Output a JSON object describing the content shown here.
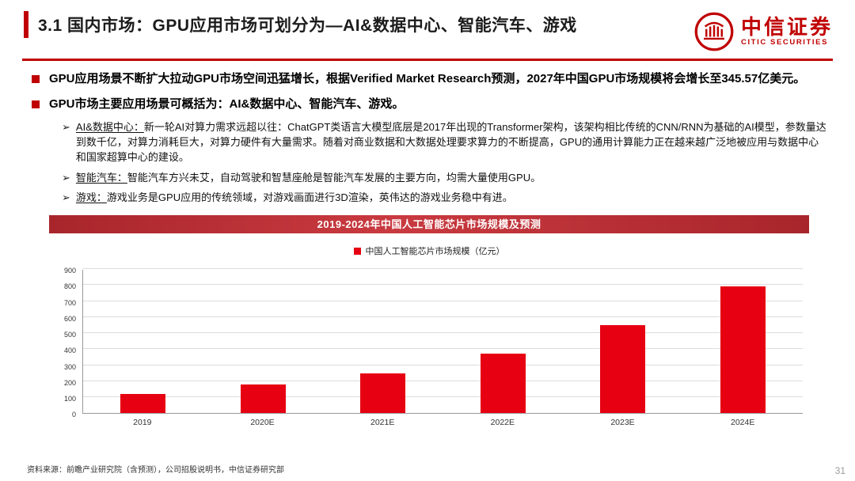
{
  "header": {
    "title": "3.1 国内市场：GPU应用市场可划分为—AI&数据中心、智能汽车、游戏",
    "logo": {
      "cn": "中信证券",
      "en": "CITIC SECURITIES"
    }
  },
  "bullets": {
    "b1": {
      "text": "GPU应用场景不断扩大拉动GPU市场空间迅猛增长，根据Verified Market Research预测，2027年中国GPU市场规模将会增长至345.57亿美元。"
    },
    "b2": {
      "text": "GPU市场主要应用场景可概括为：AI&数据中心、智能汽车、游戏。"
    },
    "sub1": {
      "lead": "AI&数据中心：",
      "text": "新一轮AI对算力需求远超以往：ChatGPT类语言大模型底层是2017年出现的Transformer架构，该架构相比传统的CNN/RNN为基础的AI模型，参数量达到数千亿，对算力消耗巨大，对算力硬件有大量需求。随着对商业数据和大数据处理要求算力的不断提高，GPU的通用计算能力正在越来越广泛地被应用与数据中心和国家超算中心的建设。"
    },
    "sub2": {
      "lead": "智能汽车：",
      "text": "智能汽车方兴未艾，自动驾驶和智慧座舱是智能汽车发展的主要方向，均需大量使用GPU。"
    },
    "sub3": {
      "lead": "游戏：",
      "text": "游戏业务是GPU应用的传统领域，对游戏画面进行3D渲染，英伟达的游戏业务稳中有进。"
    }
  },
  "chart_data": {
    "type": "bar",
    "title": "2019-2024年中国人工智能芯片市场规模及预测",
    "legend": [
      "中国人工智能芯片市场规模（亿元）"
    ],
    "categories": [
      "2019",
      "2020E",
      "2021E",
      "2022E",
      "2023E",
      "2024E"
    ],
    "values": [
      120,
      180,
      250,
      370,
      550,
      790
    ],
    "ylim": [
      0,
      900
    ],
    "ytick_step": 100,
    "bar_color": "#e60012",
    "grid": true,
    "legend_position": "top",
    "xlabel": "",
    "ylabel": ""
  },
  "footer": {
    "source": "资料来源：前瞻产业研究院（含预测），公司招股说明书，中信证券研究部",
    "page": "31"
  },
  "colors": {
    "brand_red": "#c00000",
    "bar_red": "#e60012",
    "chart_header_red": "#b02a30"
  }
}
